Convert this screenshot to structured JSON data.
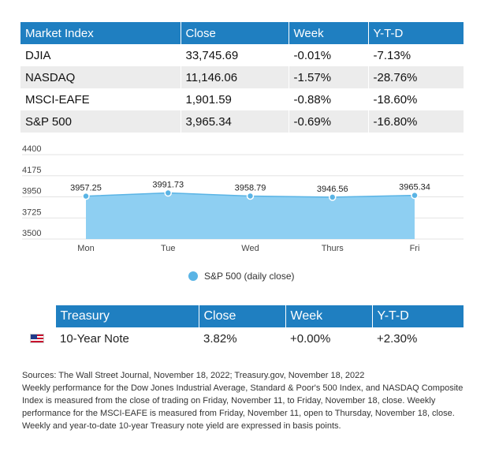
{
  "market_table": {
    "headers": [
      "Market Index",
      "Close",
      "Week",
      "Y-T-D"
    ],
    "rows": [
      {
        "index": "DJIA",
        "close": "33,745.69",
        "week": "-0.01%",
        "ytd": "-7.13%"
      },
      {
        "index": "NASDAQ",
        "close": "11,146.06",
        "week": "-1.57%",
        "ytd": "-28.76%"
      },
      {
        "index": "MSCI-EAFE",
        "close": "1,901.59",
        "week": "-0.88%",
        "ytd": "-18.60%"
      },
      {
        "index": "S&P 500",
        "close": "3,965.34",
        "week": "-0.69%",
        "ytd": "-16.80%"
      }
    ]
  },
  "chart_data": {
    "type": "area",
    "categories": [
      "Mon",
      "Tue",
      "Wed",
      "Thurs",
      "Fri"
    ],
    "series": [
      {
        "name": "S&P 500 (daily close)",
        "values": [
          3957.25,
          3991.73,
          3958.79,
          3946.56,
          3965.34
        ]
      }
    ],
    "data_labels": [
      "3957.25",
      "3991.73",
      "3958.79",
      "3946.56",
      "3965.34"
    ],
    "y_ticks": [
      "4400",
      "4175",
      "3950",
      "3725",
      "3500"
    ],
    "ylim": [
      3500,
      4400
    ],
    "grid": true,
    "legend_position": "bottom",
    "colors": {
      "fill": "#8ecff2",
      "line": "#5ab4e5",
      "marker": "#5ab4e5"
    }
  },
  "treasury_table": {
    "headers": [
      "Treasury",
      "Close",
      "Week",
      "Y-T-D"
    ],
    "flag_icon": "us-flag-icon",
    "row": {
      "name": "10-Year Note",
      "close": "3.82%",
      "week": "+0.00%",
      "ytd": "+2.30%"
    }
  },
  "footnotes": [
    "Sources: The Wall Street Journal, November 18, 2022; Treasury.gov, November 18, 2022",
    "Weekly performance for the Dow Jones Industrial Average, Standard & Poor's 500 Index, and NASDAQ Composite Index is measured from the close of trading on Friday, November 11, to Friday, November 18, close. Weekly performance for the MSCI-EAFE is measured from Friday, November 11, open to Thursday, November 18, close. Weekly and year-to-date 10-year Treasury note yield are expressed in basis points."
  ],
  "colors": {
    "header_bg": "#1f7fc1",
    "stripe": "#ececec"
  }
}
